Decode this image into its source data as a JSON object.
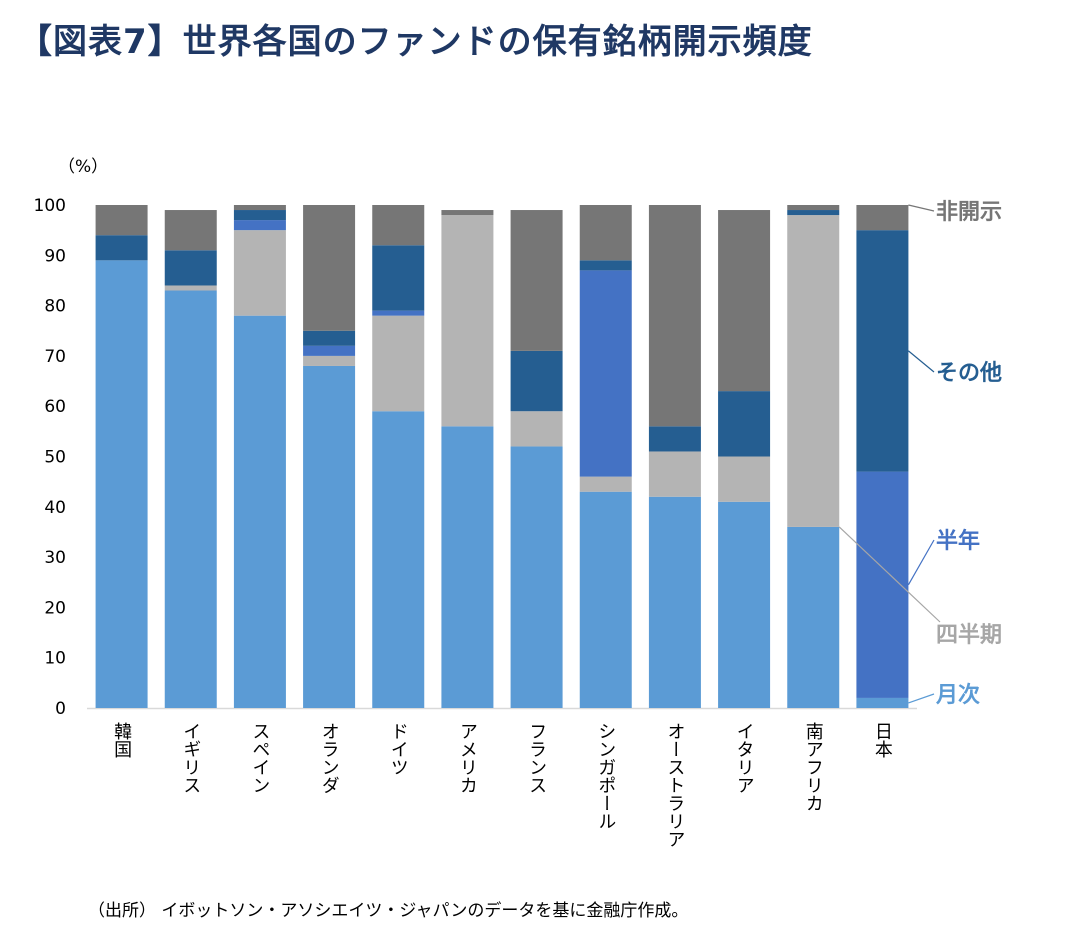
{
  "title": "【図表7】世界各国のファンドの保有銘柄開示頻度",
  "source": "（出所） イボットソン・アソシエイツ・ジャパンのデータを基に金融庁作成。",
  "colors": {
    "monthly": "#5b9bd5",
    "quarterly": "#b4b4b4",
    "semiannual": "#4472c4",
    "other": "#255e91",
    "undisclosed": "#767676",
    "axis": "#d9d9d9"
  },
  "chart_data": {
    "type": "bar",
    "stacked": true,
    "unit_label": "（%）",
    "ylim": [
      0,
      100
    ],
    "yticks": [
      "0",
      "10",
      "20",
      "30",
      "40",
      "50",
      "60",
      "70",
      "80",
      "90",
      "100"
    ],
    "categories": [
      "韓国",
      "イギリス",
      "スペイン",
      "オランダ",
      "ドイツ",
      "アメリカ",
      "フランス",
      "シンガポール",
      "オーストラリア",
      "イタリア",
      "南アフリカ",
      "日本"
    ],
    "series": [
      {
        "name": "月次",
        "key": "monthly",
        "values": [
          89,
          83,
          78,
          68,
          59,
          56,
          52,
          43,
          42,
          41,
          36,
          2
        ]
      },
      {
        "name": "四半期",
        "key": "quarterly",
        "values": [
          0,
          1,
          17,
          2,
          19,
          42,
          7,
          3,
          9,
          9,
          62,
          0
        ]
      },
      {
        "name": "半年",
        "key": "semiannual",
        "values": [
          0,
          0,
          2,
          2,
          1,
          0,
          0,
          41,
          0,
          0,
          0,
          45
        ]
      },
      {
        "name": "その他",
        "key": "other",
        "values": [
          5,
          7,
          2,
          3,
          13,
          0,
          12,
          2,
          5,
          13,
          1,
          48
        ]
      },
      {
        "name": "非開示",
        "key": "undisclosed",
        "values": [
          6,
          8,
          1,
          25,
          8,
          1,
          28,
          11,
          44,
          36,
          1,
          5
        ]
      }
    ],
    "legend": "right, labels beside the 日本 bar"
  }
}
